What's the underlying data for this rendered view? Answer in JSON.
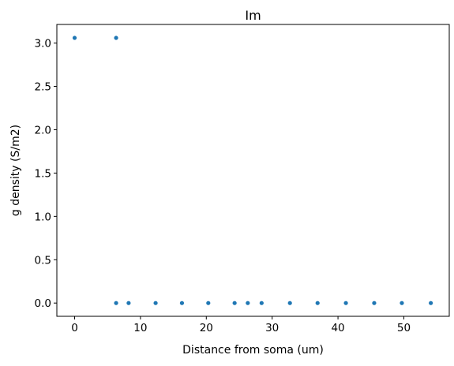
{
  "chart_data": {
    "type": "scatter",
    "title": "Im",
    "xlabel": "Distance from soma (um)",
    "ylabel": "g density (S/m2)",
    "xlim": [
      -2.7,
      56.9
    ],
    "ylim": [
      -0.153,
      3.215
    ],
    "xticks": [
      0,
      10,
      20,
      30,
      40,
      50
    ],
    "yticks": [
      0.0,
      0.5,
      1.0,
      1.5,
      2.0,
      2.5,
      3.0
    ],
    "xtick_labels": [
      "0",
      "10",
      "20",
      "30",
      "40",
      "50"
    ],
    "ytick_labels": [
      "0.0",
      "0.5",
      "1.0",
      "1.5",
      "2.0",
      "2.5",
      "3.0"
    ],
    "grid": false,
    "color": "#1f77b4",
    "series": [
      {
        "x": [
          0,
          6.3,
          6.3,
          8.2,
          12.3,
          16.3,
          20.3,
          24.3,
          26.3,
          28.4,
          32.7,
          36.9,
          41.2,
          45.5,
          49.7,
          54.1
        ],
        "y": [
          3.06,
          3.06,
          0,
          0,
          0,
          0,
          0,
          0,
          0,
          0,
          0,
          0,
          0,
          0,
          0,
          0
        ]
      }
    ]
  }
}
